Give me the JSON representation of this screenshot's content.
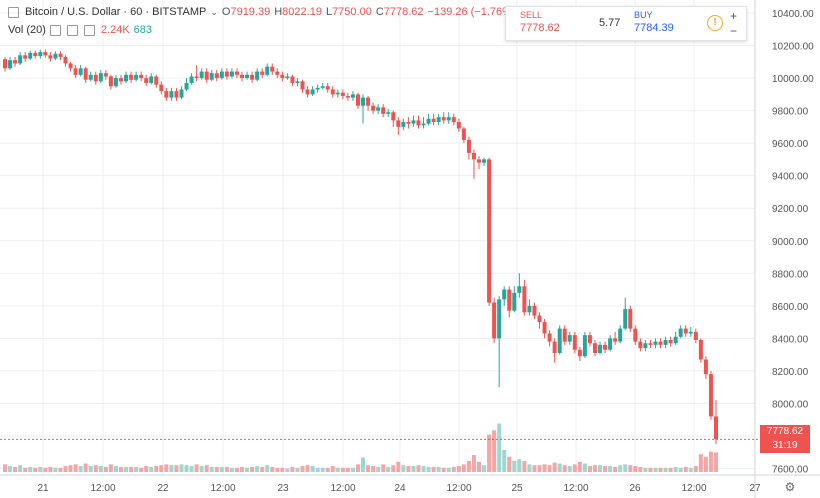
{
  "header": {
    "symbol": "Bitcoin / U.S. Dollar · 60 · BITSTAMP",
    "dropdown_icon": "chevron-down-icon",
    "ohlc": [
      {
        "k": "O",
        "v": "7919.39"
      },
      {
        "k": "H",
        "v": "8022.19"
      },
      {
        "k": "L",
        "v": "7750.00"
      },
      {
        "k": "C",
        "v": "7778.62"
      }
    ],
    "change": "−139.26 (−1.76%)"
  },
  "volume_legend": {
    "label": "Vol (20)",
    "v1": "2.24K",
    "v2": "683"
  },
  "trade": {
    "sell_label": "SELL",
    "sell_price": "7778.62",
    "spread": "5.77",
    "buy_label": "BUY",
    "buy_price": "7784.39",
    "plus": "+",
    "minus": "−"
  },
  "price_axis": {
    "current_price": "7778.62",
    "countdown": "31:19"
  },
  "colors": {
    "up": "#26a69a",
    "down": "#ef5350",
    "grid": "#eceff2"
  },
  "chart_data": {
    "type": "candlestick",
    "y_ticks": [
      "7600.00",
      "7800.00",
      "8000.00",
      "8200.00",
      "8400.00",
      "8600.00",
      "8800.00",
      "9000.00",
      "9200.00",
      "9400.00",
      "9600.00",
      "9800.00",
      "10000.00",
      "10200.00",
      "10400.00"
    ],
    "x_ticks": [
      "21",
      "12:00",
      "22",
      "12:00",
      "23",
      "12:00",
      "24",
      "12:00",
      "25",
      "12:00",
      "26",
      "12:00",
      "27"
    ],
    "ylim": [
      7560,
      10480
    ],
    "x_range": [
      0,
      150
    ],
    "candles": [
      [
        10116,
        10060,
        10130,
        10040,
        900
      ],
      [
        10060,
        10110,
        10130,
        10050,
        700
      ],
      [
        10110,
        10090,
        10130,
        10070,
        600
      ],
      [
        10090,
        10140,
        10160,
        10080,
        800
      ],
      [
        10140,
        10120,
        10160,
        10100,
        500
      ],
      [
        10120,
        10155,
        10170,
        10110,
        600
      ],
      [
        10155,
        10135,
        10170,
        10120,
        500
      ],
      [
        10135,
        10160,
        10175,
        10120,
        600
      ],
      [
        10160,
        10140,
        10175,
        10125,
        500
      ],
      [
        10140,
        10120,
        10160,
        10100,
        600
      ],
      [
        10120,
        10150,
        10165,
        10110,
        500
      ],
      [
        10150,
        10130,
        10165,
        10110,
        500
      ],
      [
        10130,
        10090,
        10140,
        10070,
        700
      ],
      [
        10090,
        10060,
        10100,
        10040,
        800
      ],
      [
        10060,
        10020,
        10080,
        10000,
        900
      ],
      [
        10020,
        10060,
        10080,
        10010,
        700
      ],
      [
        10060,
        9990,
        10070,
        9970,
        1000
      ],
      [
        9990,
        10020,
        10040,
        9980,
        700
      ],
      [
        10020,
        9980,
        10040,
        9960,
        800
      ],
      [
        9980,
        10030,
        10050,
        9970,
        700
      ],
      [
        10030,
        10010,
        10050,
        9990,
        600
      ],
      [
        10010,
        9950,
        10020,
        9930,
        900
      ],
      [
        9950,
        10000,
        10020,
        9940,
        700
      ],
      [
        10000,
        9980,
        10020,
        9960,
        600
      ],
      [
        9980,
        10020,
        10040,
        9970,
        600
      ],
      [
        10020,
        9990,
        10040,
        9970,
        600
      ],
      [
        9990,
        10020,
        10040,
        9980,
        600
      ],
      [
        10020,
        10000,
        10040,
        9980,
        500
      ],
      [
        10000,
        9970,
        10020,
        9950,
        700
      ],
      [
        9970,
        10010,
        10030,
        9960,
        600
      ],
      [
        10010,
        9960,
        10020,
        9940,
        700
      ],
      [
        9960,
        9920,
        9980,
        9900,
        800
      ],
      [
        9920,
        9880,
        9940,
        9860,
        900
      ],
      [
        9880,
        9920,
        9940,
        9860,
        800
      ],
      [
        9920,
        9880,
        9940,
        9860,
        800
      ],
      [
        9880,
        9930,
        9950,
        9870,
        900
      ],
      [
        9930,
        9970,
        10000,
        9920,
        800
      ],
      [
        9970,
        10010,
        10030,
        9960,
        700
      ],
      [
        10010,
        10000,
        10080,
        9980,
        900
      ],
      [
        10000,
        10040,
        10060,
        9990,
        700
      ],
      [
        10040,
        9990,
        10060,
        9970,
        800
      ],
      [
        9990,
        10030,
        10050,
        9980,
        600
      ],
      [
        10030,
        10000,
        10050,
        9980,
        600
      ],
      [
        10000,
        10040,
        10060,
        9990,
        600
      ],
      [
        10040,
        10010,
        10060,
        9990,
        600
      ],
      [
        10010,
        10040,
        10060,
        10000,
        500
      ],
      [
        10040,
        10020,
        10060,
        10000,
        500
      ],
      [
        10020,
        10000,
        10040,
        9980,
        600
      ],
      [
        10000,
        10020,
        10040,
        9990,
        500
      ],
      [
        10020,
        9990,
        10040,
        9970,
        600
      ],
      [
        9990,
        10040,
        10060,
        9980,
        700
      ],
      [
        10040,
        10020,
        10060,
        10000,
        600
      ],
      [
        10020,
        10070,
        10090,
        10010,
        800
      ],
      [
        10070,
        10040,
        10090,
        10020,
        600
      ],
      [
        10040,
        10020,
        10060,
        10000,
        500
      ],
      [
        10020,
        10000,
        10040,
        9980,
        500
      ],
      [
        10000,
        10010,
        10030,
        9990,
        400
      ],
      [
        10010,
        9970,
        10020,
        9950,
        600
      ],
      [
        9970,
        9980,
        10000,
        9950,
        500
      ],
      [
        9980,
        9930,
        9990,
        9910,
        700
      ],
      [
        9930,
        9900,
        9950,
        9880,
        800
      ],
      [
        9900,
        9930,
        9950,
        9890,
        700
      ],
      [
        9930,
        9940,
        9960,
        9910,
        500
      ],
      [
        9940,
        9950,
        9970,
        9930,
        500
      ],
      [
        9950,
        9930,
        9970,
        9910,
        500
      ],
      [
        9930,
        9900,
        9950,
        9880,
        700
      ],
      [
        9900,
        9910,
        9930,
        9880,
        500
      ],
      [
        9910,
        9890,
        9930,
        9870,
        500
      ],
      [
        9890,
        9880,
        9910,
        9860,
        500
      ],
      [
        9880,
        9900,
        9920,
        9860,
        500
      ],
      [
        9900,
        9830,
        9910,
        9810,
        900
      ],
      [
        9830,
        9880,
        9900,
        9720,
        1700
      ],
      [
        9880,
        9830,
        9890,
        9800,
        800
      ],
      [
        9830,
        9800,
        9850,
        9780,
        700
      ],
      [
        9800,
        9820,
        9840,
        9780,
        600
      ],
      [
        9820,
        9780,
        9840,
        9760,
        900
      ],
      [
        9780,
        9790,
        9810,
        9760,
        600
      ],
      [
        9790,
        9740,
        9800,
        9700,
        800
      ],
      [
        9740,
        9700,
        9760,
        9650,
        1200
      ],
      [
        9700,
        9730,
        9750,
        9680,
        800
      ],
      [
        9730,
        9720,
        9760,
        9690,
        700
      ],
      [
        9720,
        9740,
        9770,
        9700,
        700
      ],
      [
        9740,
        9710,
        9770,
        9690,
        800
      ],
      [
        9710,
        9720,
        9760,
        9690,
        700
      ],
      [
        9720,
        9750,
        9780,
        9710,
        600
      ],
      [
        9750,
        9730,
        9780,
        9710,
        600
      ],
      [
        9730,
        9760,
        9780,
        9710,
        600
      ],
      [
        9760,
        9740,
        9790,
        9720,
        500
      ],
      [
        9740,
        9760,
        9790,
        9720,
        500
      ],
      [
        9760,
        9730,
        9780,
        9710,
        600
      ],
      [
        9730,
        9690,
        9750,
        9670,
        700
      ],
      [
        9690,
        9620,
        9700,
        9600,
        900
      ],
      [
        9620,
        9540,
        9640,
        9500,
        1300
      ],
      [
        9540,
        9500,
        9560,
        9380,
        2000
      ],
      [
        9500,
        9480,
        9520,
        9440,
        1200
      ],
      [
        9480,
        9500,
        9510,
        9460,
        800
      ],
      [
        9500,
        8620,
        9510,
        8600,
        4400
      ],
      [
        8620,
        8400,
        8650,
        8370,
        4900
      ],
      [
        8400,
        8640,
        8660,
        8100,
        5700
      ],
      [
        8640,
        8700,
        8720,
        8600,
        2600
      ],
      [
        8700,
        8570,
        8720,
        8530,
        1800
      ],
      [
        8570,
        8680,
        8720,
        8560,
        1300
      ],
      [
        8680,
        8720,
        8800,
        8650,
        1500
      ],
      [
        8720,
        8560,
        8760,
        8540,
        1300
      ],
      [
        8560,
        8600,
        8640,
        8540,
        900
      ],
      [
        8600,
        8540,
        8620,
        8520,
        800
      ],
      [
        8540,
        8500,
        8560,
        8460,
        800
      ],
      [
        8500,
        8430,
        8520,
        8400,
        900
      ],
      [
        8430,
        8380,
        8450,
        8350,
        800
      ],
      [
        8380,
        8310,
        8400,
        8250,
        1100
      ],
      [
        8310,
        8460,
        8480,
        8300,
        1000
      ],
      [
        8460,
        8380,
        8480,
        8360,
        800
      ],
      [
        8380,
        8420,
        8440,
        8360,
        700
      ],
      [
        8420,
        8330,
        8440,
        8310,
        900
      ],
      [
        8330,
        8290,
        8350,
        8260,
        1200
      ],
      [
        8290,
        8420,
        8440,
        8280,
        1000
      ],
      [
        8420,
        8370,
        8440,
        8350,
        700
      ],
      [
        8370,
        8310,
        8390,
        8290,
        800
      ],
      [
        8310,
        8360,
        8380,
        8300,
        800
      ],
      [
        8360,
        8330,
        8380,
        8310,
        700
      ],
      [
        8330,
        8400,
        8420,
        8320,
        700
      ],
      [
        8400,
        8380,
        8440,
        8360,
        600
      ],
      [
        8380,
        8460,
        8480,
        8370,
        800
      ],
      [
        8460,
        8580,
        8650,
        8450,
        900
      ],
      [
        8580,
        8460,
        8600,
        8440,
        800
      ],
      [
        8460,
        8380,
        8480,
        8360,
        700
      ],
      [
        8380,
        8340,
        8400,
        8320,
        600
      ],
      [
        8340,
        8370,
        8390,
        8320,
        500
      ],
      [
        8370,
        8360,
        8390,
        8340,
        500
      ],
      [
        8360,
        8380,
        8400,
        8340,
        500
      ],
      [
        8380,
        8360,
        8400,
        8340,
        500
      ],
      [
        8360,
        8390,
        8410,
        8340,
        500
      ],
      [
        8390,
        8370,
        8410,
        8350,
        500
      ],
      [
        8370,
        8410,
        8440,
        8360,
        600
      ],
      [
        8410,
        8460,
        8480,
        8400,
        500
      ],
      [
        8460,
        8430,
        8480,
        8410,
        600
      ],
      [
        8430,
        8440,
        8470,
        8410,
        500
      ],
      [
        8440,
        8390,
        8460,
        8370,
        700
      ],
      [
        8390,
        8270,
        8400,
        8250,
        2100
      ],
      [
        8270,
        8180,
        8290,
        8150,
        1800
      ],
      [
        8180,
        7920,
        8200,
        7900,
        2400
      ],
      [
        7920,
        7780,
        8020,
        7750,
        2300
      ]
    ]
  }
}
